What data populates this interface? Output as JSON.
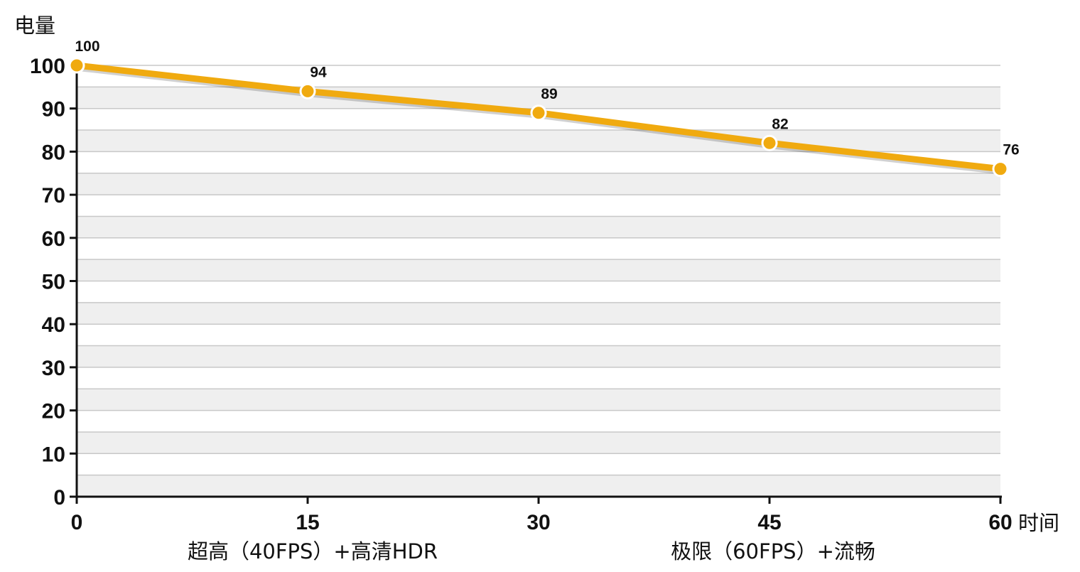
{
  "chart_data": {
    "type": "line",
    "ylabel": "电量",
    "xlabel": "时间",
    "x": [
      0,
      15,
      30,
      45,
      60
    ],
    "xticks": [
      "0",
      "15",
      "30",
      "45",
      "60"
    ],
    "yticks": [
      "0",
      "10",
      "20",
      "30",
      "40",
      "50",
      "60",
      "70",
      "80",
      "90",
      "100"
    ],
    "xlim": [
      0,
      60
    ],
    "ylim": [
      0,
      100
    ],
    "grid": true,
    "series": [
      {
        "values": [
          100,
          94,
          89,
          82,
          76
        ],
        "color": "#f0aa0f"
      }
    ],
    "data_labels": [
      "100",
      "94",
      "89",
      "82",
      "76"
    ],
    "annotations": [
      "超高（40FPS）+高清HDR",
      "极限（60FPS）+流畅"
    ]
  },
  "colors": {
    "line": "#f0aa0f",
    "band": "#efefef",
    "grid": "#c8c8c8",
    "axis": "#111111"
  }
}
